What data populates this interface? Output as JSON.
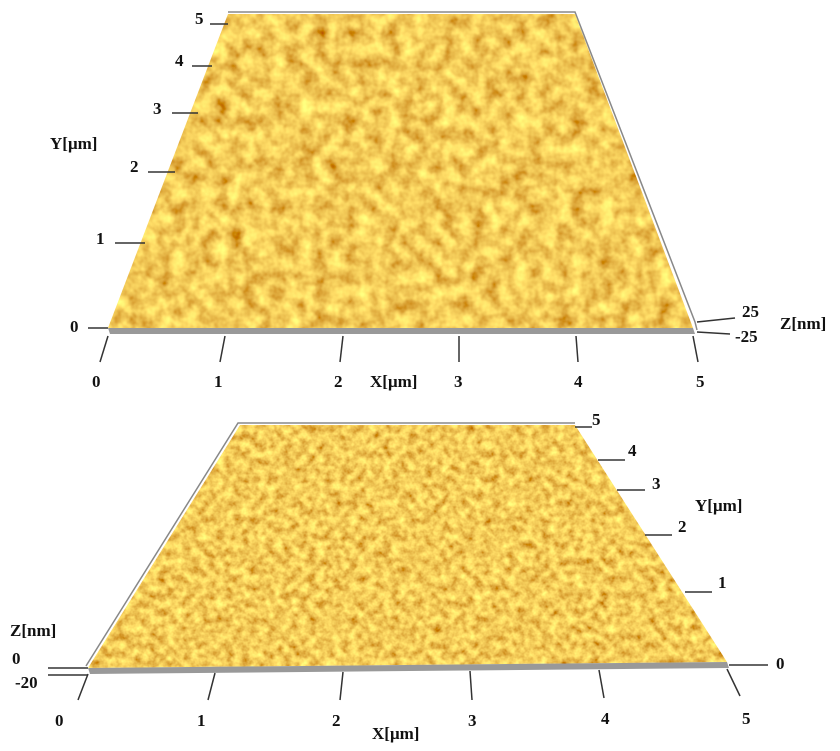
{
  "top_panel": {
    "y_ticks": [
      "0",
      "1",
      "2",
      "3",
      "4",
      "5"
    ],
    "y_label": "Y[μm]",
    "x_ticks": [
      "0",
      "1",
      "2",
      "3",
      "4",
      "5"
    ],
    "x_label": "X[μm]",
    "z_ticks": [
      "25",
      "-25"
    ],
    "z_label": "Z[nm]"
  },
  "bottom_panel": {
    "y_ticks": [
      "0",
      "1",
      "2",
      "3",
      "4",
      "5"
    ],
    "y_label": "Y[μm]",
    "x_ticks": [
      "0",
      "1",
      "2",
      "3",
      "4",
      "5"
    ],
    "x_label": "X[μm]",
    "z_ticks": [
      "0",
      "-20"
    ],
    "z_label": "Z[nm]"
  }
}
